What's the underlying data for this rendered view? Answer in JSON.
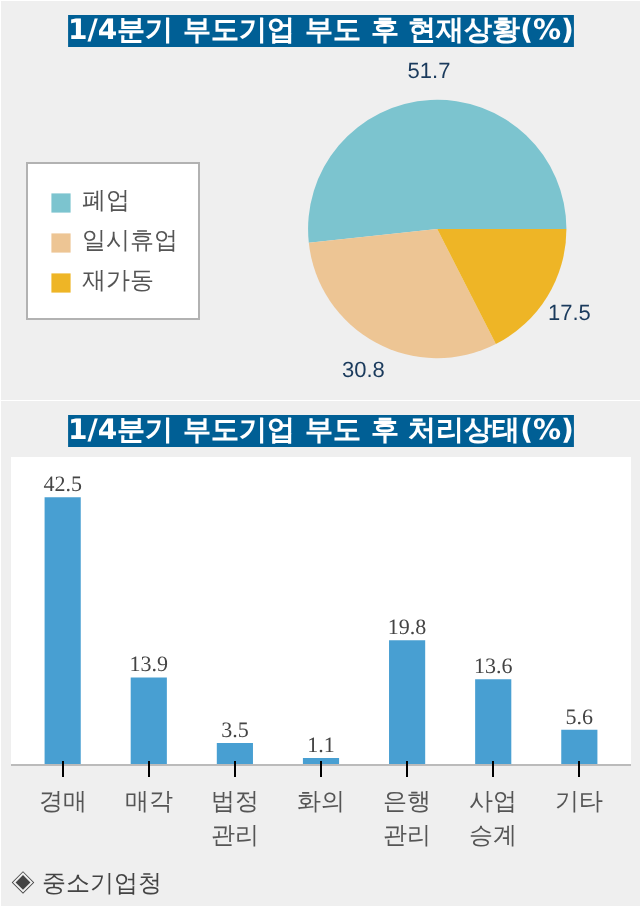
{
  "chart_data": [
    {
      "type": "pie",
      "title": "1/4분기 부도기업 부도 후 현재상황(%)",
      "categories": [
        "폐업",
        "일시휴업",
        "재가동"
      ],
      "values": [
        51.7,
        30.8,
        17.5
      ],
      "colors": [
        "#7cc4cf",
        "#edc594",
        "#eeb526"
      ],
      "data_labels": true,
      "legend": "left"
    },
    {
      "type": "bar",
      "title": "1/4분기 부도기업 부도 후 처리상태(%)",
      "categories": [
        "경매",
        "매각",
        "법정\n관리",
        "화의",
        "은행\n관리",
        "사업\n승계",
        "기타"
      ],
      "values": [
        42.5,
        13.9,
        3.5,
        1.1,
        19.8,
        13.6,
        5.6
      ],
      "color": "#489fd2",
      "data_labels": true,
      "grid": false,
      "tick_labels": "x",
      "annotations": [
        "◈ 중소기업청"
      ]
    }
  ]
}
